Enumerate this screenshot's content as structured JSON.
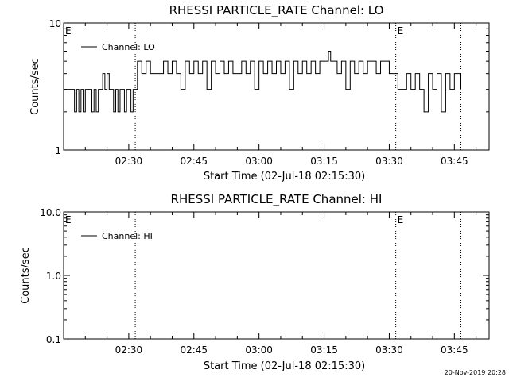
{
  "chart_data": [
    {
      "type": "line",
      "title": "RHESSI PARTICLE_RATE Channel: LO",
      "xlabel": "Start Time (02-Jul-18 02:15:30)",
      "ylabel": "Counts/sec",
      "yscale": "log",
      "ylim": [
        1,
        10
      ],
      "y_ticks": [
        "1",
        "10"
      ],
      "x_tick_labels": [
        "02:30",
        "02:45",
        "03:00",
        "03:15",
        "03:30",
        "03:45"
      ],
      "x_ticks_min": [
        15,
        30,
        45,
        60,
        75,
        90
      ],
      "xlim_min": [
        0,
        98
      ],
      "event_lines_min": [
        16.5,
        76.5,
        91.5
      ],
      "event_markers": [
        {
          "label": "E",
          "x_min": 0
        },
        {
          "label": "E",
          "x_min": 76.5
        }
      ],
      "legend": {
        "label": "Channel: LO",
        "placement": "top-left"
      },
      "series": [
        {
          "name": "Channel: LO",
          "x_min": [
            0,
            2,
            2.5,
            3,
            3.5,
            4,
            4.5,
            5,
            6,
            6.5,
            7,
            7.5,
            8,
            8.5,
            9,
            9.5,
            10,
            10.5,
            11,
            11.5,
            12,
            12.5,
            13,
            13.5,
            14,
            14.5,
            15,
            15.5,
            16,
            16.5,
            17,
            18,
            19,
            20,
            22,
            23,
            24,
            25,
            26,
            27,
            28,
            29,
            30,
            31,
            32,
            33,
            34,
            35,
            36,
            37,
            38,
            39,
            40,
            41,
            42,
            43,
            44,
            45,
            46,
            47,
            48,
            49,
            50,
            51,
            52,
            53,
            54,
            55,
            56,
            57,
            58,
            59,
            60,
            61,
            61.5,
            62,
            63,
            64,
            65,
            66,
            67,
            68,
            69,
            70,
            71,
            72,
            73,
            74,
            75,
            76,
            76.5,
            77,
            78,
            79,
            80,
            81,
            82,
            83,
            84,
            85,
            86,
            87,
            88,
            89,
            90,
            91,
            91.5
          ],
          "values": [
            3,
            3,
            2,
            3,
            2,
            3,
            2,
            3,
            3,
            2,
            3,
            2,
            3,
            3,
            4,
            3,
            4,
            3,
            3,
            2,
            3,
            2,
            3,
            3,
            2,
            3,
            3,
            2,
            3,
            3,
            5,
            4,
            5,
            4,
            4,
            5,
            4,
            5,
            4,
            3,
            5,
            4,
            5,
            4,
            5,
            3,
            5,
            4,
            5,
            4,
            5,
            4,
            4,
            5,
            4,
            5,
            3,
            5,
            4,
            5,
            4,
            5,
            4,
            5,
            3,
            5,
            4,
            5,
            4,
            5,
            4,
            5,
            5,
            6,
            5,
            5,
            4,
            5,
            3,
            5,
            4,
            5,
            4,
            5,
            5,
            4,
            5,
            5,
            4,
            4,
            4,
            3,
            3,
            4,
            3,
            4,
            3,
            2,
            4,
            3,
            4,
            2,
            4,
            3,
            4,
            4,
            3
          ]
        }
      ]
    },
    {
      "type": "line",
      "title": "RHESSI PARTICLE_RATE Channel: HI",
      "xlabel": "Start Time (02-Jul-18 02:15:30)",
      "ylabel": "Counts/sec",
      "yscale": "log",
      "ylim": [
        0.1,
        10
      ],
      "y_ticks": [
        "0.1",
        "1.0",
        "10.0"
      ],
      "x_tick_labels": [
        "02:30",
        "02:45",
        "03:00",
        "03:15",
        "03:30",
        "03:45"
      ],
      "x_ticks_min": [
        15,
        30,
        45,
        60,
        75,
        90
      ],
      "xlim_min": [
        0,
        98
      ],
      "event_lines_min": [
        16.5,
        76.5,
        91.5
      ],
      "event_markers": [
        {
          "label": "E",
          "x_min": 0
        },
        {
          "label": "E",
          "x_min": 76.5
        }
      ],
      "legend": {
        "label": "Channel: HI",
        "placement": "top-left"
      },
      "series": [
        {
          "name": "Channel: HI",
          "x_min": [],
          "values": []
        }
      ]
    }
  ],
  "footer": {
    "timestamp": "20-Nov-2019 20:28"
  }
}
